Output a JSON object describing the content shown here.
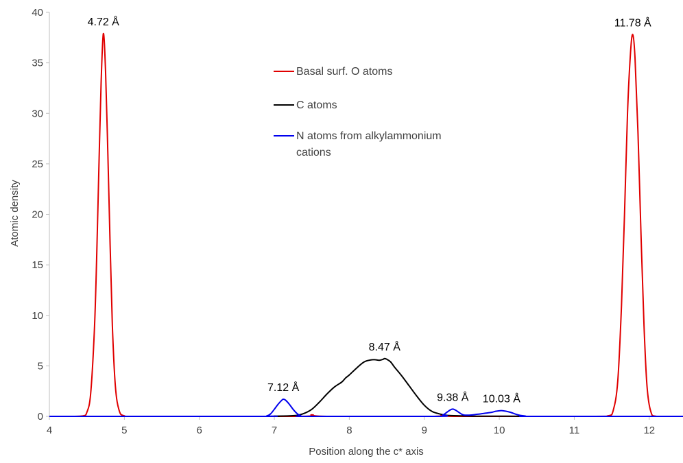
{
  "chart_data": {
    "type": "line",
    "title": "",
    "xlabel": "Position along the c* axis",
    "ylabel": "Atomic density",
    "xlim": [
      4,
      12.45
    ],
    "ylim": [
      0,
      40
    ],
    "x_ticks": [
      4,
      5,
      6,
      7,
      8,
      9,
      10,
      11,
      12
    ],
    "y_ticks": [
      0,
      5,
      10,
      15,
      20,
      25,
      30,
      35,
      40
    ],
    "grid": false,
    "legend_position": "center-top",
    "series": [
      {
        "name": "Basal surf. O atoms",
        "color": "#e00000",
        "x": [
          4.0,
          4.3,
          4.45,
          4.5,
          4.55,
          4.6,
          4.63,
          4.66,
          4.69,
          4.72,
          4.75,
          4.78,
          4.81,
          4.84,
          4.88,
          4.93,
          5.0,
          5.2,
          7.3,
          7.5,
          7.7,
          9.1,
          9.25,
          9.4,
          11.2,
          11.45,
          11.52,
          11.58,
          11.63,
          11.67,
          11.71,
          11.75,
          11.78,
          11.81,
          11.85,
          11.89,
          11.93,
          11.97,
          12.02,
          12.1,
          12.45
        ],
        "y": [
          0,
          0,
          0.05,
          0.4,
          2.2,
          8.5,
          15.5,
          24.5,
          33.0,
          37.9,
          34.0,
          26.0,
          17.0,
          9.0,
          3.0,
          0.6,
          0.05,
          0,
          0,
          0.15,
          0,
          0,
          0.15,
          0,
          0,
          0.05,
          0.6,
          3.5,
          11.0,
          20.0,
          30.0,
          36.0,
          37.8,
          35.5,
          28.0,
          18.0,
          9.0,
          3.0,
          0.5,
          0,
          0
        ]
      },
      {
        "name": "C atoms",
        "color": "#000000",
        "x": [
          4.0,
          6.8,
          7.0,
          7.2,
          7.3,
          7.4,
          7.5,
          7.6,
          7.7,
          7.8,
          7.9,
          7.95,
          8.0,
          8.1,
          8.2,
          8.3,
          8.35,
          8.4,
          8.45,
          8.47,
          8.5,
          8.55,
          8.6,
          8.7,
          8.8,
          8.9,
          9.0,
          9.1,
          9.2,
          9.3,
          9.5,
          9.7,
          10.0,
          10.3,
          10.5,
          12.45
        ],
        "y": [
          0,
          0,
          0.02,
          0.05,
          0.1,
          0.3,
          0.7,
          1.4,
          2.2,
          2.9,
          3.4,
          3.8,
          4.1,
          4.8,
          5.4,
          5.6,
          5.6,
          5.55,
          5.65,
          5.72,
          5.65,
          5.4,
          4.9,
          4.0,
          3.0,
          2.0,
          1.1,
          0.5,
          0.25,
          0.1,
          0.05,
          0.02,
          0.02,
          0.01,
          0,
          0
        ]
      },
      {
        "name": "N atoms from alkylammonium cations",
        "color": "#0000ee",
        "x": [
          4.0,
          6.8,
          6.9,
          6.95,
          7.0,
          7.05,
          7.1,
          7.12,
          7.15,
          7.2,
          7.25,
          7.3,
          7.35,
          7.45,
          9.15,
          9.25,
          9.3,
          9.35,
          9.38,
          9.42,
          9.47,
          9.52,
          9.6,
          9.7,
          9.8,
          9.9,
          9.95,
          10.0,
          10.03,
          10.08,
          10.15,
          10.25,
          10.35,
          10.45,
          12.45
        ],
        "y": [
          0,
          0,
          0.05,
          0.25,
          0.7,
          1.2,
          1.6,
          1.7,
          1.6,
          1.2,
          0.7,
          0.3,
          0.08,
          0,
          0,
          0.15,
          0.4,
          0.65,
          0.72,
          0.6,
          0.35,
          0.15,
          0.12,
          0.2,
          0.3,
          0.4,
          0.5,
          0.55,
          0.57,
          0.52,
          0.4,
          0.15,
          0.03,
          0,
          0
        ]
      }
    ],
    "annotations": [
      {
        "text": "4.72 Å",
        "x": 4.72,
        "y": 37.9
      },
      {
        "text": "11.78 Å",
        "x": 11.78,
        "y": 37.8
      },
      {
        "text": "8.47 Å",
        "x": 8.47,
        "y": 5.72
      },
      {
        "text": "7.12 Å",
        "x": 7.12,
        "y": 1.7
      },
      {
        "text": "9.38 Å",
        "x": 9.38,
        "y": 0.72
      },
      {
        "text": "10.03 Å",
        "x": 10.03,
        "y": 0.57
      }
    ],
    "legend_entries": [
      {
        "lines": [
          "Basal surf. O atoms"
        ],
        "color": "#e00000"
      },
      {
        "lines": [
          "C atoms"
        ],
        "color": "#000000"
      },
      {
        "lines": [
          "N atoms from alkylammonium",
          "cations"
        ],
        "color": "#0000ee"
      }
    ]
  }
}
